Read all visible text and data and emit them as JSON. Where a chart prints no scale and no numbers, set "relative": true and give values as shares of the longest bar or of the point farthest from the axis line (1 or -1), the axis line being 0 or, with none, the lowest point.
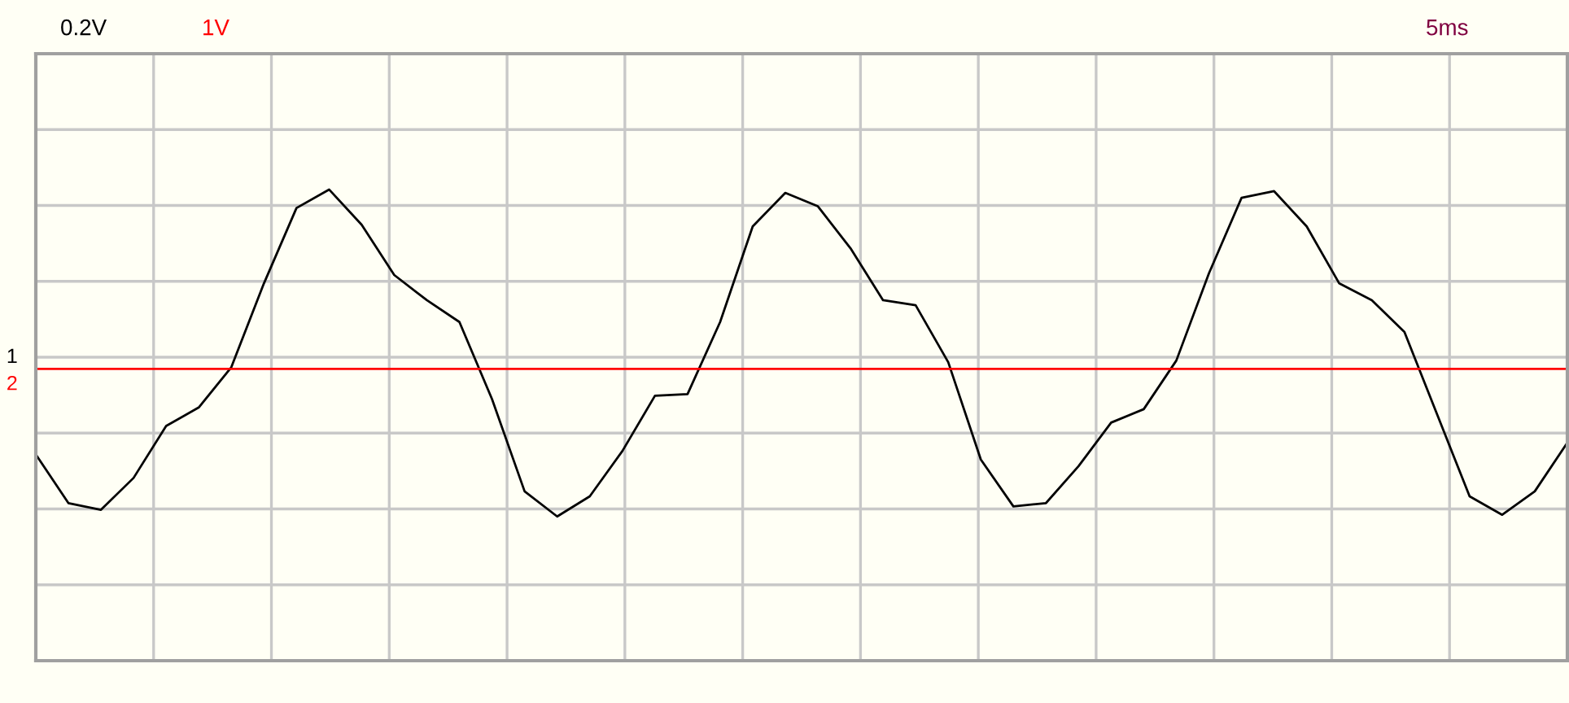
{
  "chart_data": {
    "type": "line",
    "relative": true,
    "grid": true,
    "marker": "none",
    "line_style": "solid",
    "categories": [
      null,
      null,
      null,
      null,
      null,
      null,
      null,
      null,
      null,
      null,
      null,
      null,
      null,
      null,
      null,
      null,
      null,
      null,
      null,
      null,
      null,
      null,
      null,
      null,
      null,
      null,
      null,
      null,
      null,
      null,
      null,
      null,
      null,
      null,
      null,
      null,
      null,
      null,
      null,
      null,
      null,
      null,
      null,
      null,
      null,
      null,
      null,
      null
    ],
    "series": [
      {
        "name": "1",
        "color": "#000000",
        "values": [
          -0.58,
          -0.87,
          -0.91,
          -0.72,
          -0.41,
          -0.3,
          -0.06,
          0.44,
          0.89,
          1.0,
          0.79,
          0.49,
          0.34,
          0.21,
          -0.25,
          -0.8,
          -0.95,
          -0.83,
          -0.56,
          -0.23,
          -0.22,
          0.21,
          0.78,
          0.98,
          0.9,
          0.65,
          0.34,
          0.31,
          -0.03,
          -0.61,
          -0.89,
          -0.87,
          -0.65,
          -0.39,
          -0.31,
          -0.02,
          0.5,
          0.95,
          0.99,
          0.78,
          0.44,
          0.34,
          0.15,
          -0.34,
          -0.83,
          -0.94,
          -0.8,
          -0.51
        ]
      },
      {
        "name": "2",
        "color": "#ff0000",
        "values": [
          -0.07,
          -0.07,
          -0.07,
          -0.07,
          -0.07,
          -0.07,
          -0.07,
          -0.07,
          -0.07,
          -0.07,
          -0.07,
          -0.07,
          -0.07,
          -0.07,
          -0.07,
          -0.07,
          -0.07,
          -0.07,
          -0.07,
          -0.07,
          -0.07,
          -0.07,
          -0.07,
          -0.07,
          -0.07,
          -0.07,
          -0.07,
          -0.07,
          -0.07,
          -0.07,
          -0.07,
          -0.07,
          -0.07,
          -0.07,
          -0.07,
          -0.07,
          -0.07,
          -0.07,
          -0.07,
          -0.07,
          -0.07,
          -0.07,
          -0.07,
          -0.07,
          -0.07,
          -0.07,
          -0.07,
          -0.07
        ]
      }
    ],
    "annotations": [
      "0.2V",
      "1V",
      "5ms"
    ]
  }
}
